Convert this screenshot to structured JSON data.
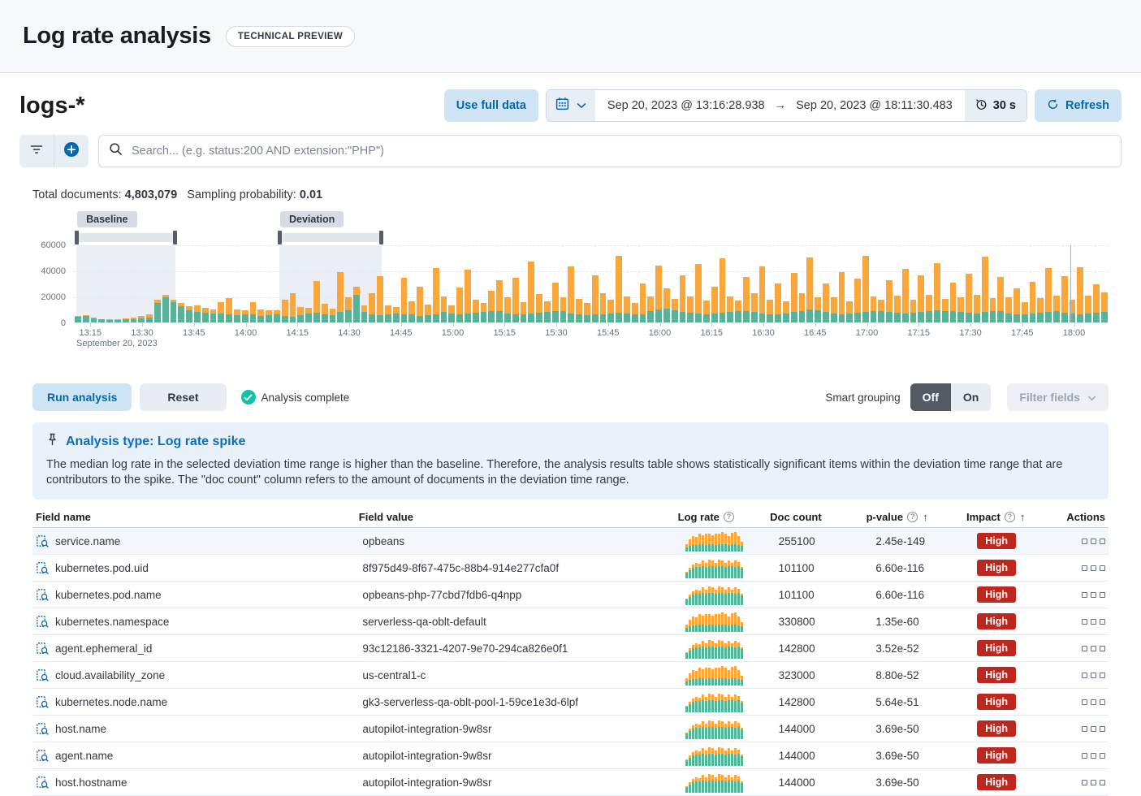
{
  "icons": {
    "arrow_right": "→",
    "sort_asc": "↑",
    "question": "?"
  },
  "colors": {
    "accent_blue": "#0068b1",
    "button_blue_bg": "#cfe5f6",
    "bar_green": "#54b399",
    "bar_orange": "#f9a63a",
    "impact_red": "#bd271e",
    "success_teal": "#10c2a7",
    "callout_bg": "#e9f2fa",
    "toggle_off_bg": "#545a64"
  },
  "header": {
    "title": "Log rate analysis",
    "badge": "TECHNICAL PREVIEW"
  },
  "toolbar": {
    "index_pattern": "logs-*",
    "use_full_data": "Use full data",
    "date_start": "Sep 20, 2023 @ 13:16:28.938",
    "date_end": "Sep 20, 2023 @ 18:11:30.483",
    "refresh_interval": "30 s",
    "refresh_label": "Refresh"
  },
  "search": {
    "placeholder": "Search... (e.g. status:200 AND extension:\"PHP\")",
    "value": ""
  },
  "stats": {
    "total_documents_label": "Total documents:",
    "total_documents": "4,803,079",
    "sampling_label": "Sampling probability:",
    "sampling": "0.01"
  },
  "analysis": {
    "run": "Run analysis",
    "reset": "Reset",
    "status": "Analysis complete",
    "smart_grouping_label": "Smart grouping",
    "toggle_off": "Off",
    "toggle_on": "On",
    "filter_fields": "Filter fields"
  },
  "callout": {
    "title": "Analysis type: Log rate spike",
    "body": "The median log rate in the selected deviation time range is higher than the baseline. Therefore, the analysis results table shows statistically significant items within the deviation time range that are contributors to the spike. The \"doc count\" column refers to the amount of documents in the deviation time range."
  },
  "chart_data": [
    {
      "type": "bar",
      "name": "document-count-histogram",
      "stacked": true,
      "title": "",
      "xlabel": "",
      "ylabel": "",
      "ylim": [
        0,
        60000
      ],
      "y_ticks": [
        0,
        20000,
        40000,
        60000
      ],
      "x_tick_labels": [
        "13:15",
        "13:30",
        "13:45",
        "14:00",
        "14:15",
        "14:30",
        "14:45",
        "15:00",
        "15:15",
        "15:30",
        "15:45",
        "16:00",
        "16:15",
        "16:30",
        "16:45",
        "17:00",
        "17:15",
        "17:30",
        "17:45",
        "18:00"
      ],
      "x_date_label": "September 20, 2023",
      "x_range_minutes": 300,
      "x_first_tick_offset_minutes": 5,
      "x_tick_step_minutes": 15,
      "grid": true,
      "legend": false,
      "baseline_badge": "Baseline",
      "deviation_badge": "Deviation",
      "baseline_window_pct": {
        "left": 0.3,
        "width": 9.6
      },
      "deviation_window_pct": {
        "left": 19.9,
        "width": 9.9
      },
      "now_line_pct": 96.3,
      "series": [
        {
          "name": "baseline-docs",
          "color": "#54b399",
          "values": [
            4200,
            4800,
            3000,
            2400,
            2000,
            2100,
            2500,
            2800,
            3200,
            4000,
            15000,
            19500,
            16000,
            12500,
            9500,
            8200,
            7400,
            6800,
            7200,
            6300,
            5800,
            6200,
            6600,
            5200,
            5600,
            6100,
            5100,
            4700,
            5700,
            7100,
            7600,
            6200,
            5700,
            8100,
            9200,
            21500,
            8200,
            6100,
            5600,
            6200,
            7100,
            6600,
            6100,
            5200,
            5600,
            6200,
            8100,
            7200,
            6600,
            7100,
            7600,
            8100,
            9100,
            8600,
            7100,
            6200,
            6600,
            7100,
            7600,
            8100,
            8600,
            9100,
            7200,
            6200,
            5700,
            6200,
            6600,
            7100,
            7600,
            7100,
            6600,
            6200,
            9100,
            10100,
            11000,
            9200,
            8200,
            7600,
            7100,
            6600,
            7200,
            7600,
            8100,
            8600,
            9100,
            8200,
            7200,
            6600,
            6200,
            7100,
            8100,
            9100,
            10100,
            9200,
            8200,
            7200,
            6600,
            7100,
            7600,
            8100,
            8600,
            9100,
            8200,
            7600,
            7200,
            7600,
            8100,
            9100,
            9600,
            9100,
            8600,
            8100,
            7600,
            7200,
            8100,
            8600,
            9100,
            7200,
            6200,
            6600,
            7100,
            7600,
            8100,
            8600,
            7600,
            7100,
            6600,
            7200,
            7600,
            8200
          ]
        },
        {
          "name": "other-docs",
          "color": "#f9a63a",
          "values": [
            900,
            700,
            500,
            400,
            300,
            500,
            800,
            1100,
            1600,
            2100,
            2600,
            1800,
            1400,
            2800,
            3400,
            5200,
            4200,
            3600,
            8400,
            12600,
            4200,
            3100,
            9400,
            5200,
            4100,
            3200,
            12400,
            18200,
            6200,
            4300,
            24500,
            8400,
            5300,
            31200,
            10400,
            6300,
            5200,
            16400,
            30200,
            7300,
            5200,
            28400,
            10300,
            22400,
            8400,
            36300,
            12400,
            6300,
            20400,
            34200,
            10400,
            7300,
            15400,
            24300,
            12400,
            28400,
            9400,
            40300,
            14400,
            8400,
            22400,
            10400,
            36200,
            12400,
            9400,
            30300,
            16400,
            10400,
            44300,
            13400,
            8400,
            24400,
            11400,
            34300,
            15400,
            9400,
            28300,
            12400,
            38200,
            10400,
            20400,
            42300,
            12400,
            8400,
            26400,
            14400,
            36300,
            11400,
            24400,
            9400,
            30300,
            13400,
            40200,
            10400,
            22400,
            12400,
            32300,
            9400,
            26400,
            43400,
            11400,
            8400,
            24400,
            13400,
            34300,
            10400,
            28400,
            12400,
            36300,
            9400,
            22400,
            11400,
            30300,
            14400,
            43300,
            10400,
            26400,
            12400,
            20400,
            9400,
            24400,
            11400,
            34300,
            12400,
            28400,
            10400,
            36300,
            13400,
            22400,
            15400
          ]
        }
      ]
    },
    {
      "type": "bar",
      "name": "log-rate-row-sparklines",
      "stacked": true,
      "patterns": {
        "orange_heavy": {
          "green": [
            4,
            5,
            6,
            6,
            7,
            7,
            6,
            7,
            7,
            6,
            7,
            7,
            7,
            6,
            7,
            7,
            6,
            5
          ],
          "orange": [
            3,
            7,
            9,
            8,
            10,
            9,
            11,
            10,
            9,
            11,
            10,
            12,
            10,
            9,
            11,
            12,
            9,
            4
          ]
        },
        "green_heavy": {
          "green": [
            5,
            8,
            10,
            11,
            11,
            12,
            11,
            12,
            12,
            11,
            12,
            12,
            11,
            12,
            12,
            11,
            12,
            9
          ],
          "orange": [
            1,
            2,
            3,
            4,
            3,
            5,
            4,
            6,
            5,
            4,
            6,
            5,
            4,
            5,
            3,
            6,
            4,
            2
          ]
        }
      }
    }
  ],
  "table": {
    "columns": [
      {
        "label": "Field name",
        "info": false,
        "sort": false
      },
      {
        "label": "Field value",
        "info": false,
        "sort": false
      },
      {
        "label": "Log rate",
        "info": true,
        "sort": false
      },
      {
        "label": "Doc count",
        "info": false,
        "sort": false
      },
      {
        "label": "p-value",
        "info": true,
        "sort": true
      },
      {
        "label": "Impact",
        "info": true,
        "sort": true
      },
      {
        "label": "Actions",
        "info": false,
        "sort": false
      }
    ],
    "rows": [
      {
        "field": "service.name",
        "value": "opbeans",
        "doc_count": "255100",
        "p_value": "2.45e-149",
        "impact": "High",
        "spark": "orange_heavy"
      },
      {
        "field": "kubernetes.pod.uid",
        "value": "8f975d49-8f67-475c-88b4-914e277cfa0f",
        "doc_count": "101100",
        "p_value": "6.60e-116",
        "impact": "High",
        "spark": "green_heavy"
      },
      {
        "field": "kubernetes.pod.name",
        "value": "opbeans-php-77cbd7fdb6-q4npp",
        "doc_count": "101100",
        "p_value": "6.60e-116",
        "impact": "High",
        "spark": "green_heavy"
      },
      {
        "field": "kubernetes.namespace",
        "value": "serverless-qa-oblt-default",
        "doc_count": "330800",
        "p_value": "1.35e-60",
        "impact": "High",
        "spark": "orange_heavy"
      },
      {
        "field": "agent.ephemeral_id",
        "value": "93c12186-3321-4207-9e70-294ca826e0f1",
        "doc_count": "142800",
        "p_value": "3.52e-52",
        "impact": "High",
        "spark": "green_heavy"
      },
      {
        "field": "cloud.availability_zone",
        "value": "us-central1-c",
        "doc_count": "323000",
        "p_value": "8.80e-52",
        "impact": "High",
        "spark": "orange_heavy"
      },
      {
        "field": "kubernetes.node.name",
        "value": "gk3-serverless-qa-oblt-pool-1-59ce1e3d-6lpf",
        "doc_count": "142800",
        "p_value": "5.64e-51",
        "impact": "High",
        "spark": "green_heavy"
      },
      {
        "field": "host.name",
        "value": "autopilot-integration-9w8sr",
        "doc_count": "144000",
        "p_value": "3.69e-50",
        "impact": "High",
        "spark": "green_heavy"
      },
      {
        "field": "agent.name",
        "value": "autopilot-integration-9w8sr",
        "doc_count": "144000",
        "p_value": "3.69e-50",
        "impact": "High",
        "spark": "green_heavy"
      },
      {
        "field": "host.hostname",
        "value": "autopilot-integration-9w8sr",
        "doc_count": "144000",
        "p_value": "3.69e-50",
        "impact": "High",
        "spark": "green_heavy"
      }
    ]
  }
}
